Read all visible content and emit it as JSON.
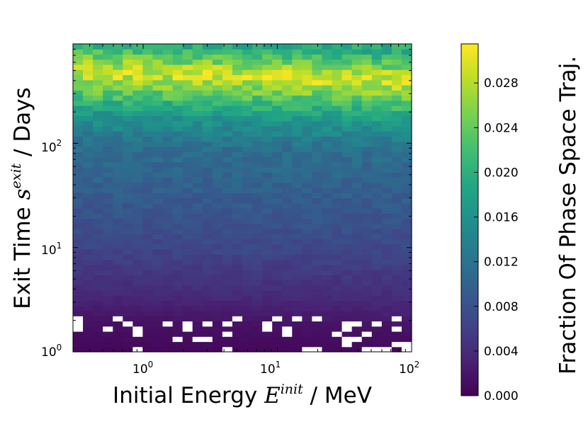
{
  "chart_data": {
    "type": "heatmap",
    "x_scale": "log",
    "y_scale": "log",
    "xlim": [
      0.3,
      100
    ],
    "ylim": [
      1,
      900
    ],
    "x_ticks": [
      {
        "base": "10",
        "exp": "0",
        "value": 1
      },
      {
        "base": "10",
        "exp": "1",
        "value": 10
      },
      {
        "base": "10",
        "exp": "2",
        "value": 100
      }
    ],
    "y_ticks": [
      {
        "base": "10",
        "exp": "0",
        "value": 1
      },
      {
        "base": "10",
        "exp": "1",
        "value": 10
      },
      {
        "base": "10",
        "exp": "2",
        "value": 100
      }
    ],
    "xlabel": {
      "prefix": "Initial Energy ",
      "symbol": "E",
      "superscript": "init",
      "suffix": " / MeV"
    },
    "ylabel": {
      "prefix": "Exit Time ",
      "symbol": "s",
      "superscript": "exit",
      "suffix": " / Days"
    },
    "grid": false,
    "colormap": "viridis",
    "colorbar": {
      "label": "Fraction Of Phase Space Traj.",
      "min": 0.0,
      "max": 0.0315,
      "ticks": [
        "0.000",
        "0.004",
        "0.008",
        "0.012",
        "0.016",
        "0.020",
        "0.024",
        "0.028"
      ]
    },
    "empty_bins_color": "#ffffff",
    "value_profile_by_exit_time": [
      {
        "exit_time": 1.0,
        "fraction": 0.0005
      },
      {
        "exit_time": 2.0,
        "fraction": 0.0015
      },
      {
        "exit_time": 4.0,
        "fraction": 0.004
      },
      {
        "exit_time": 10.0,
        "fraction": 0.0065
      },
      {
        "exit_time": 30.0,
        "fraction": 0.009
      },
      {
        "exit_time": 100.0,
        "fraction": 0.0115
      },
      {
        "exit_time": 200.0,
        "fraction": 0.017
      },
      {
        "exit_time": 400.0,
        "fraction": 0.027
      },
      {
        "exit_time": 500.0,
        "fraction": 0.0295
      },
      {
        "exit_time": 900.0,
        "fraction": 0.0195
      }
    ]
  }
}
